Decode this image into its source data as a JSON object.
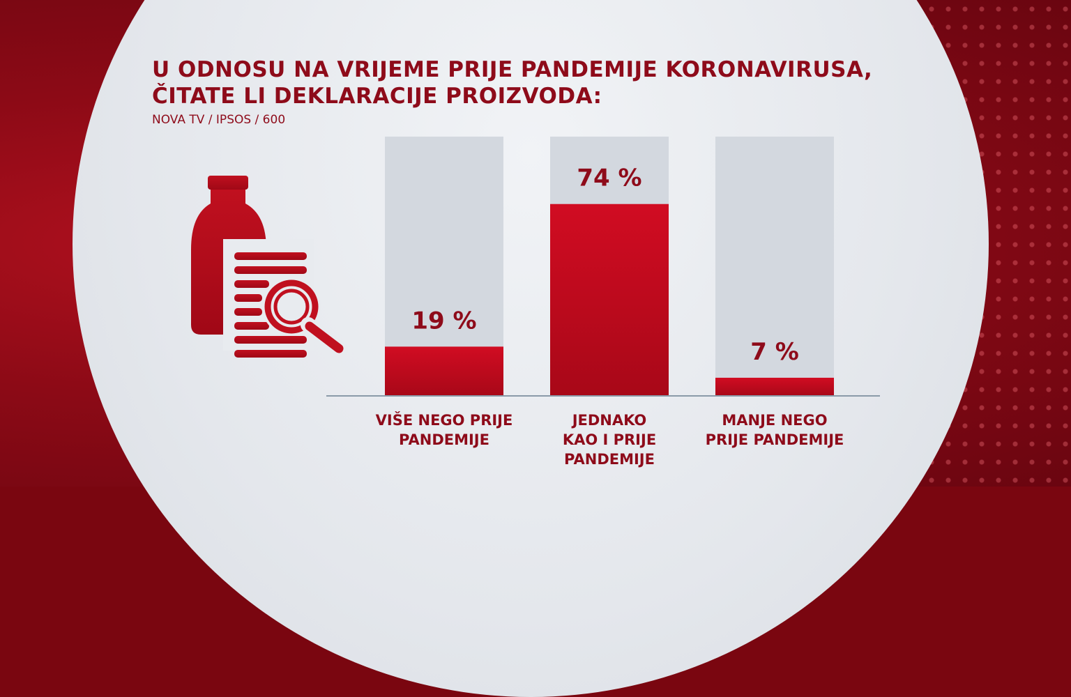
{
  "title_line1": "U ODNOSU NA VRIJEME PRIJE PANDEMIJE KORONAVIRUSA,",
  "title_line2": "ČITATE LI DEKLARACIJE PROIZVODA:",
  "subtitle": "NOVA TV / IPSOS / 600",
  "icon": "milk-bottle-with-magnifier-icon",
  "colors": {
    "bar": "#c80a1e",
    "track": "#d3d8df",
    "text": "#8e0b1a"
  },
  "chart_data": {
    "type": "bar",
    "categories": [
      [
        "VIŠE NEGO PRIJE",
        "PANDEMIJE"
      ],
      [
        "JEDNAKO",
        "KAO I PRIJE",
        "PANDEMIJE"
      ],
      [
        "MANJE NEGO",
        "PRIJE PANDEMIJE"
      ]
    ],
    "values": [
      19,
      74,
      7
    ],
    "value_labels": [
      "19 %",
      "74 %",
      "7 %"
    ],
    "unit": "%",
    "ylim": [
      0,
      100
    ],
    "grid": false,
    "legend": "none"
  }
}
